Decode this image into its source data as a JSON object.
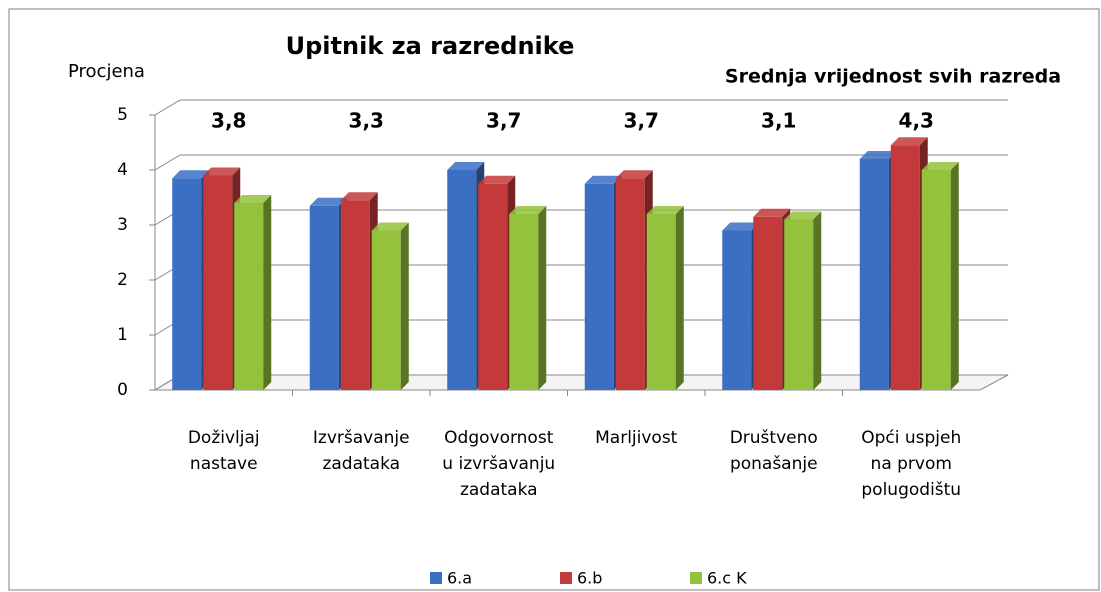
{
  "chart_data": {
    "type": "bar3d",
    "title": "Upitnik za razrednike",
    "y_label": "Procjena",
    "annotation": "Srednja vrijednost svih razreda",
    "categories": [
      [
        "Doživljaj",
        "nastave"
      ],
      [
        "Izvršavanje",
        "zadataka"
      ],
      [
        "Odgovornost",
        "u izvršavanju",
        "zadataka"
      ],
      [
        "Marljivost"
      ],
      [
        "Društveno",
        "ponašanje"
      ],
      [
        "Opći uspjeh",
        "na prvom",
        "polugodištu"
      ]
    ],
    "series": [
      {
        "name": "6.a",
        "color": "#3a6fc4",
        "values": [
          3.85,
          3.35,
          4.0,
          3.75,
          2.9,
          4.2
        ]
      },
      {
        "name": "6.b",
        "color": "#c43a3a",
        "values": [
          3.9,
          3.45,
          3.75,
          3.85,
          3.15,
          4.45
        ]
      },
      {
        "name": "6.c K",
        "color": "#94c23c",
        "values": [
          3.4,
          2.9,
          3.2,
          3.2,
          3.1,
          4.0
        ]
      }
    ],
    "averages": {
      "values": [
        3.8,
        3.3,
        3.7,
        3.7,
        3.1,
        4.3
      ],
      "value_labels": [
        "3,8",
        "3,3",
        "3,7",
        "3,7",
        "3,1",
        "4,3"
      ],
      "color": "#ff0000"
    },
    "ylim": [
      0,
      5
    ],
    "yticks": [
      0,
      1,
      2,
      3,
      4,
      5
    ],
    "grid": true,
    "legend": "bottom"
  }
}
